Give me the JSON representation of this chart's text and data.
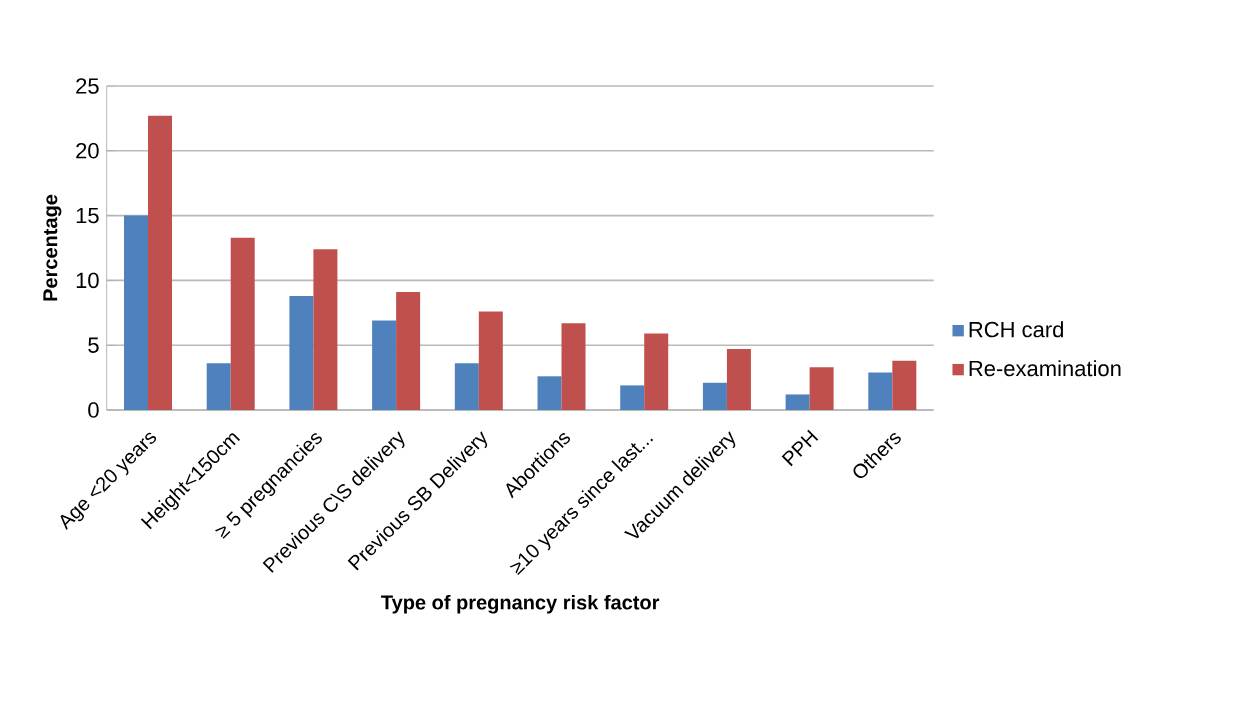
{
  "chart_data": {
    "type": "bar",
    "xlabel": "Type of pregnancy risk factor",
    "ylabel": "Percentage",
    "categories": [
      "Age <20 years",
      "Height<150cm",
      "≥ 5 pregnancies",
      "Previous C\\S delivery",
      "Previous SB Delivery",
      "Abortions",
      "≥10 years since last...",
      "Vacuum delivery",
      "PPH",
      "Others"
    ],
    "series": [
      {
        "name": "RCH card",
        "color": "#4f81bd",
        "values": [
          15.0,
          3.6,
          8.8,
          6.9,
          3.6,
          2.6,
          1.9,
          2.1,
          1.2,
          2.9
        ]
      },
      {
        "name": "Re-examination",
        "color": "#c0504d",
        "values": [
          22.7,
          13.3,
          12.4,
          9.1,
          7.6,
          6.7,
          5.9,
          4.7,
          3.3,
          3.8
        ]
      }
    ],
    "ylim": [
      0,
      25
    ],
    "yticks": [
      0,
      5,
      10,
      15,
      20,
      25
    ],
    "grid": "y",
    "legend": "right"
  }
}
